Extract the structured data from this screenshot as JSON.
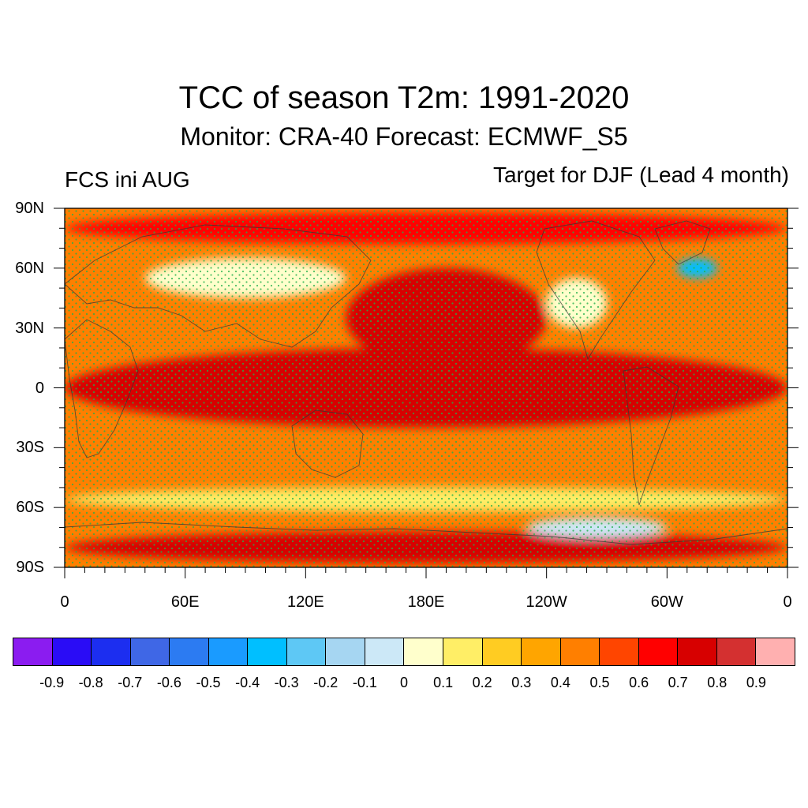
{
  "title": "TCC of season T2m: 1991-2020",
  "subtitle": "Monitor: CRA-40   Forecast: ECMWF_S5",
  "left_label": "FCS ini AUG",
  "right_label": "Target for DJF (Lead 4 month)",
  "lat_ticks": [
    "90N",
    "60N",
    "30N",
    "0",
    "30S",
    "60S",
    "90S"
  ],
  "lon_ticks": [
    "0",
    "60E",
    "120E",
    "180E",
    "120W",
    "60W",
    "0"
  ],
  "colorbar": {
    "colors": [
      "#8b1cf0",
      "#2a0cf6",
      "#1c2ef0",
      "#3f67e6",
      "#2c7bf2",
      "#1a9bff",
      "#00bfff",
      "#5ec8f5",
      "#a6d6f2",
      "#cce8f7",
      "#ffffcc",
      "#ffee66",
      "#ffcc22",
      "#ffa500",
      "#ff7f00",
      "#ff4500",
      "#ff0000",
      "#d70000",
      "#d43030",
      "#ffb0b0"
    ],
    "labels": [
      "-0.9",
      "-0.8",
      "-0.7",
      "-0.6",
      "-0.5",
      "-0.4",
      "-0.3",
      "-0.2",
      "-0.1",
      "0",
      "0.1",
      "0.2",
      "0.3",
      "0.4",
      "0.5",
      "0.6",
      "0.7",
      "0.8",
      "0.9"
    ]
  },
  "map": {
    "projection": "equirectangular",
    "lon_range": [
      0,
      360
    ],
    "lat_range": [
      -90,
      90
    ],
    "variable": "TCC of season T2m",
    "stippling": "green dots over significant regions",
    "regions": [
      {
        "name": "tropical-east-pacific",
        "lon": [
          185,
          285
        ],
        "lat": [
          -10,
          8
        ],
        "level": 0.9
      },
      {
        "name": "tropical-belt",
        "lon": [
          0,
          360
        ],
        "lat": [
          -20,
          20
        ],
        "level": 0.7
      },
      {
        "name": "north-pacific",
        "lon": [
          140,
          240
        ],
        "lat": [
          10,
          60
        ],
        "level": 0.7
      },
      {
        "name": "eurasia-mid",
        "lon": [
          40,
          140
        ],
        "lat": [
          45,
          65
        ],
        "level": 0.0
      },
      {
        "name": "north-america",
        "lon": [
          240,
          270
        ],
        "lat": [
          30,
          55
        ],
        "level": 0.0
      },
      {
        "name": "greenland-south",
        "lon": [
          305,
          325
        ],
        "lat": [
          55,
          65
        ],
        "level": -0.3
      },
      {
        "name": "arctic",
        "lon": [
          0,
          360
        ],
        "lat": [
          72,
          88
        ],
        "level": 0.6
      },
      {
        "name": "southern-ocean",
        "lon": [
          0,
          360
        ],
        "lat": [
          -62,
          -50
        ],
        "level": 0.2
      },
      {
        "name": "antarctic",
        "lon": [
          0,
          360
        ],
        "lat": [
          -88,
          -72
        ],
        "level": 0.7
      },
      {
        "name": "south-pacific-east",
        "lon": [
          230,
          300
        ],
        "lat": [
          -75,
          -65
        ],
        "level": -0.1
      }
    ]
  }
}
